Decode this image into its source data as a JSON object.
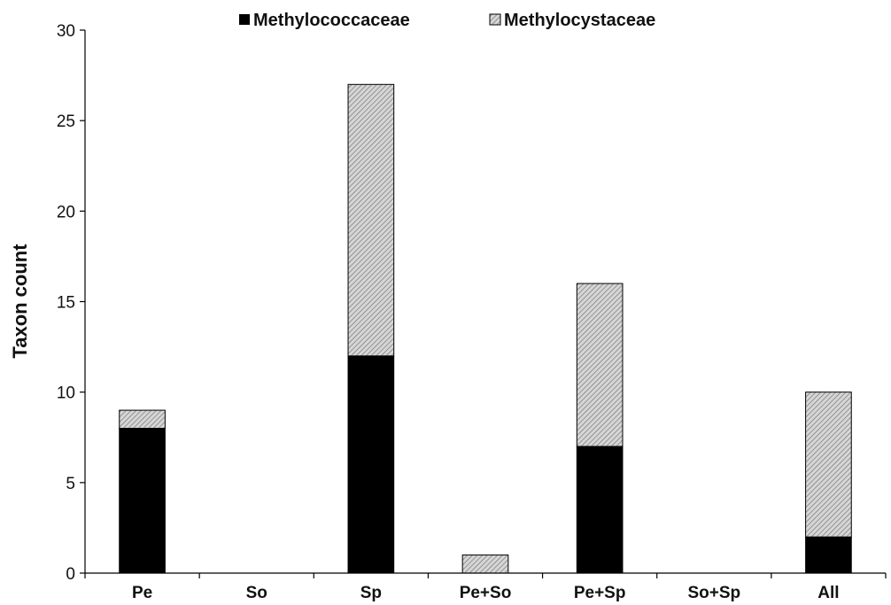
{
  "chart_data": {
    "type": "bar",
    "stacked": true,
    "categories": [
      "Pe",
      "So",
      "Sp",
      "Pe+So",
      "Pe+Sp",
      "So+Sp",
      "All"
    ],
    "series": [
      {
        "name": "Methylococcaceae",
        "values": [
          8,
          0,
          12,
          0,
          7,
          0,
          2
        ],
        "color": "#000000"
      },
      {
        "name": "Methylocystaceae",
        "values": [
          1,
          0,
          15,
          1,
          9,
          0,
          8
        ],
        "color": "#c8c8c8",
        "pattern": "diagonal-hatch"
      }
    ],
    "title": "",
    "xlabel": "",
    "ylabel": "Taxon count",
    "ylim": [
      0,
      30
    ],
    "yticks": [
      0,
      5,
      10,
      15,
      20,
      25,
      30
    ],
    "grid": false,
    "legend_position": "top"
  }
}
